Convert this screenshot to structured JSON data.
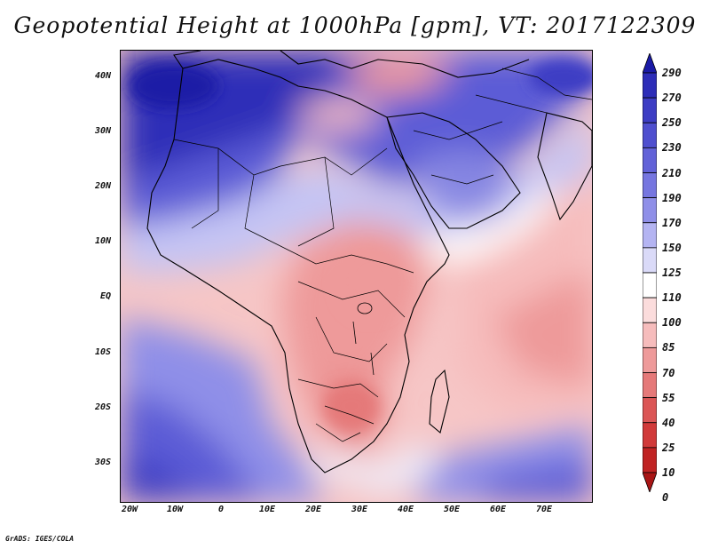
{
  "title": "Geopotential Height at 1000hPa [gpm], VT: 2017122309",
  "credit": "GrADS: IGES/COLA",
  "lat_labels": [
    "40N",
    "30N",
    "20N",
    "10N",
    "EQ",
    "10S",
    "20S",
    "30S"
  ],
  "lon_labels": [
    "20W",
    "10W",
    "0",
    "10E",
    "20E",
    "30E",
    "40E",
    "50E",
    "60E",
    "70E"
  ],
  "colorbar": {
    "labels": [
      "290",
      "270",
      "250",
      "230",
      "210",
      "190",
      "170",
      "150",
      "125",
      "110",
      "100",
      "85",
      "70",
      "55",
      "40",
      "25",
      "10",
      "0"
    ],
    "colors": [
      "#1a1aa6",
      "#2d2db8",
      "#3d3dc4",
      "#4f4fcf",
      "#6262d8",
      "#7676e0",
      "#8f8fe8",
      "#b4b4f2",
      "#dadaf8",
      "#ffffff",
      "#fbdcdc",
      "#f6bcbc",
      "#ee9a9a",
      "#e57979",
      "#db5656",
      "#d13a3a",
      "#c02323",
      "#a81515"
    ]
  },
  "map": {
    "type": "filled-contour",
    "variable": "geopotential height",
    "level": "1000hPa",
    "units": "gpm",
    "valid_time": "2017122309"
  }
}
